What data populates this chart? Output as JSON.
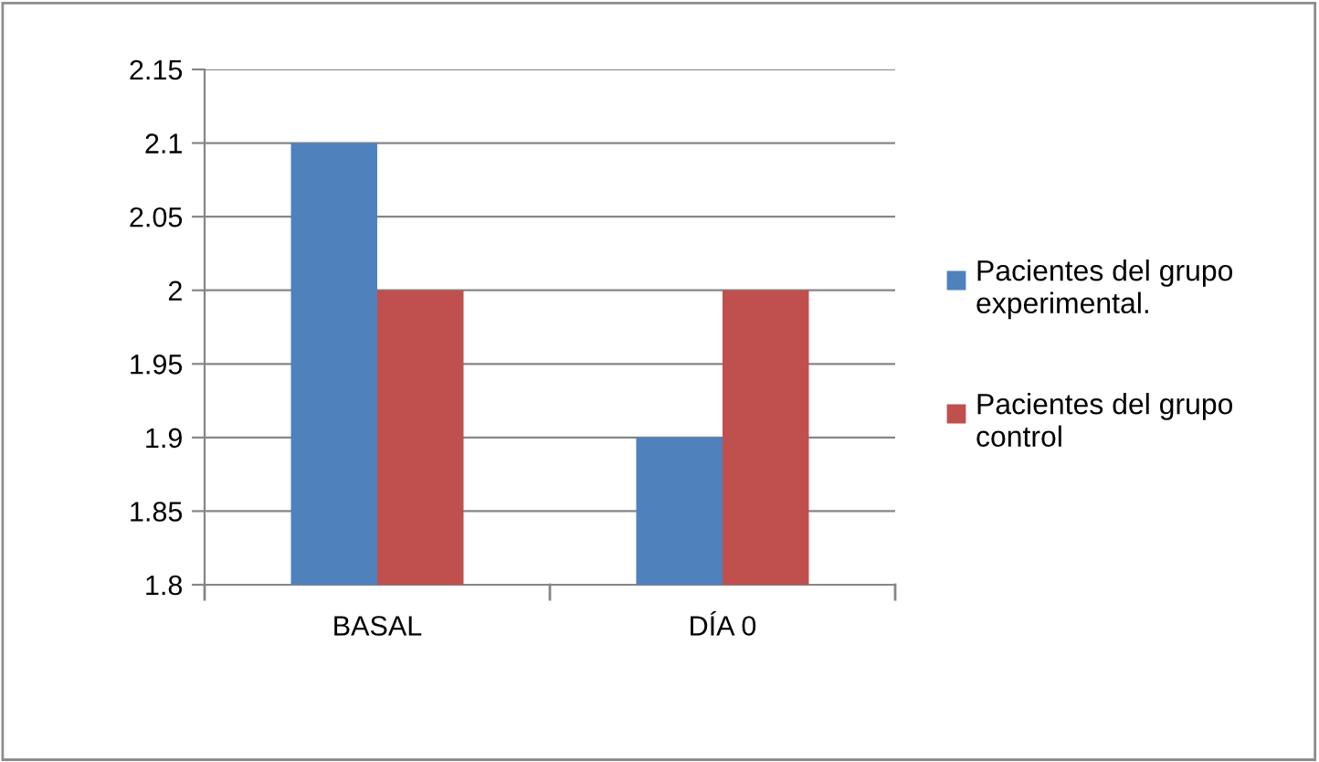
{
  "chart_data": {
    "type": "bar",
    "categories": [
      "BASAL",
      "DÍA 0"
    ],
    "series": [
      {
        "name": "Pacientes del grupo experimental.",
        "color": "#4f81bd",
        "values": [
          2.1,
          1.9
        ]
      },
      {
        "name": "Pacientes del grupo control",
        "color": "#c0504d",
        "values": [
          2,
          2
        ]
      }
    ],
    "ylim": [
      1.8,
      2.15
    ],
    "yticks": [
      1.8,
      1.85,
      1.9,
      1.95,
      2,
      2.05,
      2.1,
      2.15
    ],
    "grid": "y",
    "legend": "right"
  }
}
